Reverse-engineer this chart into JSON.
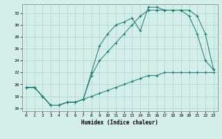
{
  "xlabel": "Humidex (Indice chaleur)",
  "bg_color": "#d4eeea",
  "grid_color": "#aed4ce",
  "line_color": "#1a7a6e",
  "xlim": [
    -0.5,
    23.5
  ],
  "ylim": [
    15.5,
    33.5
  ],
  "xticks": [
    0,
    1,
    2,
    3,
    4,
    5,
    6,
    7,
    8,
    9,
    10,
    11,
    12,
    13,
    14,
    15,
    16,
    17,
    18,
    19,
    20,
    21,
    22,
    23
  ],
  "yticks": [
    16,
    18,
    20,
    22,
    24,
    26,
    28,
    30,
    32
  ],
  "line1_x": [
    0,
    1,
    2,
    3,
    4,
    5,
    6,
    7,
    8,
    9,
    10,
    11,
    12,
    13,
    14,
    15,
    16,
    17,
    18,
    19,
    20,
    21,
    22,
    23
  ],
  "line1_y": [
    19.5,
    19.5,
    18.0,
    16.5,
    16.5,
    17.0,
    17.0,
    17.5,
    18.0,
    18.5,
    19.0,
    19.5,
    20.0,
    20.5,
    21.0,
    21.5,
    21.5,
    22.0,
    22.0,
    22.0,
    22.0,
    22.0,
    22.0,
    22.0
  ],
  "line2_x": [
    0,
    1,
    2,
    3,
    4,
    5,
    6,
    7,
    8,
    9,
    10,
    11,
    12,
    13,
    14,
    15,
    16,
    17,
    18,
    19,
    20,
    21,
    22,
    23
  ],
  "line2_y": [
    19.5,
    19.5,
    18.0,
    16.5,
    16.5,
    17.0,
    17.0,
    17.5,
    22.0,
    26.5,
    28.5,
    30.0,
    30.5,
    31.2,
    29.0,
    33.0,
    33.0,
    32.5,
    32.5,
    32.5,
    31.5,
    28.5,
    24.0,
    22.5
  ],
  "line3_x": [
    0,
    1,
    2,
    3,
    4,
    5,
    6,
    7,
    8,
    9,
    10,
    11,
    12,
    13,
    14,
    15,
    16,
    17,
    18,
    19,
    20,
    21,
    22,
    23
  ],
  "line3_y": [
    19.5,
    19.5,
    18.0,
    16.5,
    16.5,
    17.0,
    17.0,
    17.5,
    21.5,
    24.0,
    25.5,
    27.0,
    28.5,
    30.0,
    31.5,
    32.5,
    32.5,
    32.5,
    32.5,
    32.5,
    32.5,
    31.5,
    28.5,
    22.5
  ]
}
